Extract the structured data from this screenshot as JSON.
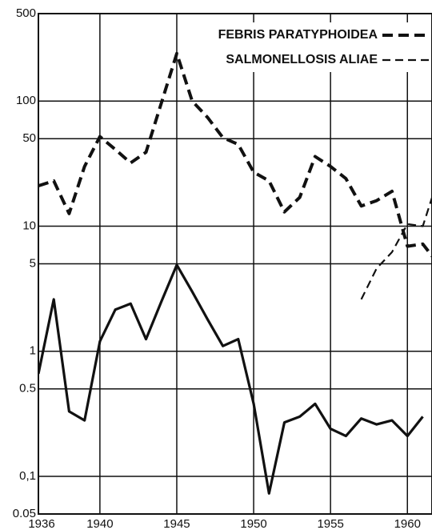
{
  "chart_data": {
    "type": "line",
    "x": [
      1936,
      1937,
      1938,
      1939,
      1940,
      1941,
      1942,
      1943,
      1944,
      1945,
      1946,
      1947,
      1948,
      1949,
      1950,
      1951,
      1952,
      1953,
      1954,
      1955,
      1956,
      1957,
      1958,
      1959,
      1960,
      1961,
      1962
    ],
    "series": [
      {
        "color": "#111111",
        "style": "solid",
        "values": [
          0.66,
          2.6,
          0.33,
          0.28,
          1.2,
          2.15,
          2.4,
          1.25,
          2.5,
          4.9,
          3.0,
          1.8,
          1.1,
          1.25,
          0.38,
          0.073,
          0.27,
          0.3,
          0.38,
          0.24,
          0.21,
          0.29,
          0.26,
          0.28,
          0.21,
          0.3,
          null
        ]
      },
      {
        "name": "FEBRIS PARATYPHOIDEA",
        "color": "#111111",
        "style": "thick-dashed",
        "values": [
          21,
          23,
          12.6,
          30,
          52,
          41,
          32,
          39,
          97,
          240,
          100,
          74,
          51,
          45,
          27,
          23,
          13,
          17,
          36,
          30,
          24,
          14.5,
          16,
          19,
          6.9,
          7.2,
          5.0
        ]
      },
      {
        "name": "SALMONELLOSIS ALIAE",
        "color": "#111111",
        "style": "thin-dashed",
        "values": [
          null,
          null,
          null,
          null,
          null,
          null,
          null,
          null,
          null,
          null,
          null,
          null,
          null,
          null,
          null,
          null,
          null,
          null,
          null,
          null,
          null,
          2.6,
          4.6,
          6.2,
          10.4,
          10,
          24
        ]
      }
    ],
    "xlim": [
      1936,
      1961.6
    ],
    "xticks": [
      1936,
      1940,
      1945,
      1950,
      1955,
      1960
    ],
    "ylim": [
      0.05,
      500
    ],
    "yticks": [
      500,
      100,
      50,
      10,
      5,
      1,
      0.5,
      {
        "value": 0.1,
        "label": "0,1"
      },
      0.05
    ],
    "log_scale": true,
    "grid": true,
    "legend": "top-right"
  }
}
